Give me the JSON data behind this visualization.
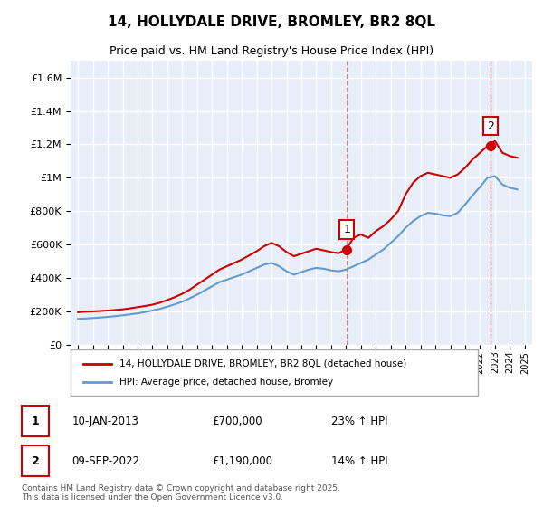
{
  "title": "14, HOLLYDALE DRIVE, BROMLEY, BR2 8QL",
  "subtitle": "Price paid vs. HM Land Registry's House Price Index (HPI)",
  "legend_label_red": "14, HOLLYDALE DRIVE, BROMLEY, BR2 8QL (detached house)",
  "legend_label_blue": "HPI: Average price, detached house, Bromley",
  "footnote": "Contains HM Land Registry data © Crown copyright and database right 2025.\nThis data is licensed under the Open Government Licence v3.0.",
  "transaction1_label": "1",
  "transaction1_date": "10-JAN-2013",
  "transaction1_price": "£700,000",
  "transaction1_hpi": "23% ↑ HPI",
  "transaction2_label": "2",
  "transaction2_date": "09-SEP-2022",
  "transaction2_price": "£1,190,000",
  "transaction2_hpi": "14% ↑ HPI",
  "red_color": "#cc0000",
  "blue_color": "#6699cc",
  "dashed_line_color": "#cc0000",
  "background_color": "#ffffff",
  "plot_bg_color": "#e8eef8",
  "grid_color": "#ffffff",
  "ylim": [
    0,
    1700000
  ],
  "yticks": [
    0,
    200000,
    400000,
    600000,
    800000,
    1000000,
    1200000,
    1400000,
    1600000
  ],
  "xlim_start": 1994.5,
  "xlim_end": 2025.5,
  "transaction1_x": 2013.05,
  "transaction2_x": 2022.7,
  "red_x": [
    1995,
    1995.5,
    1996,
    1996.5,
    1997,
    1997.5,
    1998,
    1998.5,
    1999,
    1999.5,
    2000,
    2000.5,
    2001,
    2001.5,
    2002,
    2002.5,
    2003,
    2003.5,
    2004,
    2004.5,
    2005,
    2005.5,
    2006,
    2006.5,
    2007,
    2007.5,
    2008,
    2008.5,
    2009,
    2009.5,
    2010,
    2010.5,
    2011,
    2011.5,
    2012,
    2012.5,
    2013,
    2013.5,
    2014,
    2014.5,
    2015,
    2015.5,
    2016,
    2016.5,
    2017,
    2017.5,
    2018,
    2018.5,
    2019,
    2019.5,
    2020,
    2020.5,
    2021,
    2021.5,
    2022,
    2022.5,
    2023,
    2023.5,
    2024,
    2024.5
  ],
  "red_y": [
    195000,
    198000,
    200000,
    202000,
    205000,
    208000,
    212000,
    218000,
    225000,
    232000,
    240000,
    252000,
    268000,
    285000,
    305000,
    330000,
    360000,
    390000,
    420000,
    450000,
    470000,
    490000,
    510000,
    535000,
    560000,
    590000,
    610000,
    590000,
    555000,
    530000,
    545000,
    560000,
    575000,
    565000,
    555000,
    548000,
    570000,
    640000,
    660000,
    640000,
    680000,
    710000,
    750000,
    800000,
    900000,
    970000,
    1010000,
    1030000,
    1020000,
    1010000,
    1000000,
    1020000,
    1060000,
    1110000,
    1150000,
    1190000,
    1220000,
    1150000,
    1130000,
    1120000
  ],
  "blue_x": [
    1995,
    1995.5,
    1996,
    1996.5,
    1997,
    1997.5,
    1998,
    1998.5,
    1999,
    1999.5,
    2000,
    2000.5,
    2001,
    2001.5,
    2002,
    2002.5,
    2003,
    2003.5,
    2004,
    2004.5,
    2005,
    2005.5,
    2006,
    2006.5,
    2007,
    2007.5,
    2008,
    2008.5,
    2009,
    2009.5,
    2010,
    2010.5,
    2011,
    2011.5,
    2012,
    2012.5,
    2013,
    2013.5,
    2014,
    2014.5,
    2015,
    2015.5,
    2016,
    2016.5,
    2017,
    2017.5,
    2018,
    2018.5,
    2019,
    2019.5,
    2020,
    2020.5,
    2021,
    2021.5,
    2022,
    2022.5,
    2023,
    2023.5,
    2024,
    2024.5
  ],
  "blue_y": [
    155000,
    157000,
    160000,
    163000,
    167000,
    171000,
    176000,
    182000,
    188000,
    196000,
    205000,
    215000,
    228000,
    242000,
    258000,
    278000,
    300000,
    325000,
    350000,
    375000,
    390000,
    405000,
    420000,
    440000,
    460000,
    480000,
    490000,
    470000,
    440000,
    420000,
    435000,
    450000,
    460000,
    455000,
    445000,
    440000,
    450000,
    470000,
    490000,
    510000,
    540000,
    570000,
    610000,
    650000,
    700000,
    740000,
    770000,
    790000,
    785000,
    775000,
    770000,
    790000,
    840000,
    895000,
    945000,
    1000000,
    1010000,
    960000,
    940000,
    930000
  ]
}
